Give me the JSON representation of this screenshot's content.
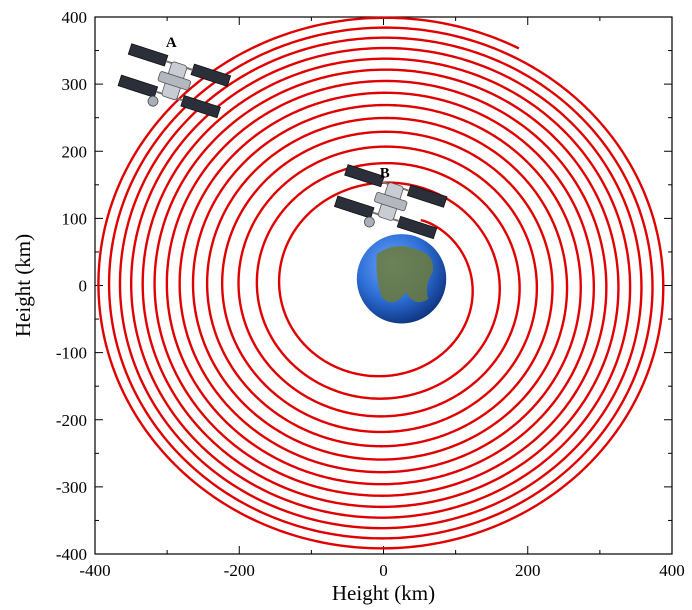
{
  "chart_data": {
    "type": "line",
    "xlabel": "Height (km)",
    "ylabel": "Height (km)",
    "xlim": [
      -400,
      400
    ],
    "ylim": [
      -400,
      400
    ],
    "x_ticks": [
      -400,
      -200,
      0,
      200,
      400
    ],
    "y_ticks": [
      -400,
      -300,
      -200,
      -100,
      0,
      100,
      200,
      300,
      400
    ],
    "x_tick_labels": [
      "-400",
      "-200",
      "0",
      "200",
      "400"
    ],
    "y_tick_labels": [
      "-400",
      "-300",
      "-200",
      "-100",
      "0",
      "100",
      "200",
      "300",
      "400"
    ],
    "series": [
      {
        "color": "#e00000",
        "spiral": {
          "start_radius": 110,
          "end_radius": 400,
          "turns": 14,
          "start_angle_deg": 62,
          "growth_exponent": 0.7
        }
      }
    ],
    "earth": {
      "x": 25,
      "y": 10,
      "radius": 62
    },
    "satellites": [
      {
        "label": "A",
        "x": -290,
        "y": 305
      },
      {
        "label": "B",
        "x": 10,
        "y": 125
      }
    ],
    "grid": false,
    "legend": "none"
  }
}
